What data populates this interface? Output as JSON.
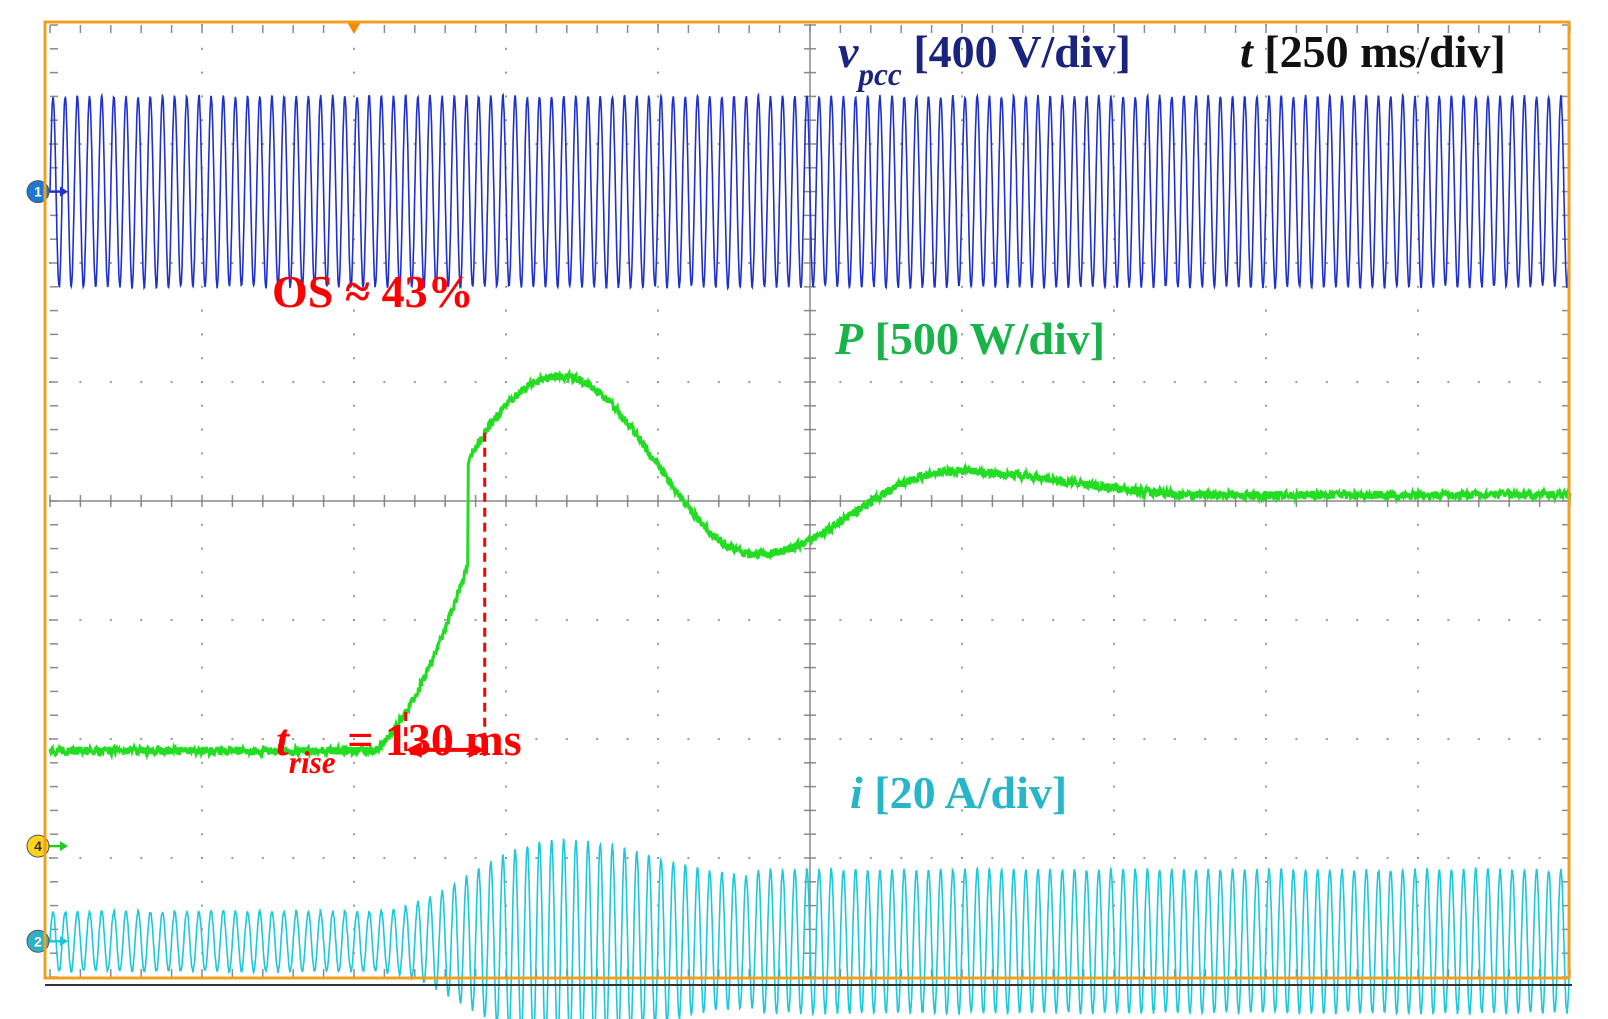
{
  "chart_data": {
    "type": "line",
    "title": "",
    "grid": true,
    "divisions": {
      "x": 10,
      "y": 8
    },
    "time_scale": {
      "label": "t",
      "unit": "[250 ms/div]",
      "ms_per_div": 250
    },
    "xlim_ms": [
      0,
      2500
    ],
    "trigger_marker": {
      "type": "trigger",
      "x_ms": 500,
      "color": "#f08c00"
    },
    "series": [
      {
        "name": "v",
        "subscript": "pcc",
        "scale": "[400 V/div]",
        "color": "#1f30d0",
        "label_color": "#1a237e",
        "channel": "1",
        "marker_color": "#1f77d4",
        "type": "sine",
        "frequency_hz": 50,
        "center_div": 1.4,
        "amplitude_div": 0.8
      },
      {
        "name": "P",
        "scale": "[500 W/div]",
        "color": "#22dd22",
        "label_color": "#1ab34a",
        "type": "step_response",
        "initial_div": 6.1,
        "final_div": 3.95,
        "step_start_ms": 535,
        "peak_ms": 840,
        "peak_div": 2.95,
        "undershoot_ms": 1160,
        "undershoot_div": 4.45,
        "second_peak_ms": 1485,
        "second_peak_div": 3.75,
        "settle_ms": 1900
      },
      {
        "name": "i",
        "scale": "[20 A/div]",
        "color": "#1cc8dc",
        "label_color": "#26b6c8",
        "channel": "2",
        "marker_color": "#2fb0c8",
        "type": "sine",
        "frequency_hz": 50,
        "center_div": 7.7,
        "amplitude_initial_div": 0.25,
        "amplitude_peak_div": 0.85,
        "amplitude_final_div": 0.6
      }
    ],
    "channel4_marker": {
      "channel": "4",
      "y_div": 6.9,
      "color": "#ffd21e",
      "arrow_color": "#22cc22"
    },
    "annotations": {
      "overshoot": {
        "text": "OS ≈ 43%",
        "value_percent": 43
      },
      "rise_time": {
        "symbol": "t",
        "subscript": "rise",
        "text": " = 130 ms",
        "value_ms": 130,
        "start_ms": 585,
        "end_ms": 715
      },
      "color": "#ff0000"
    }
  }
}
